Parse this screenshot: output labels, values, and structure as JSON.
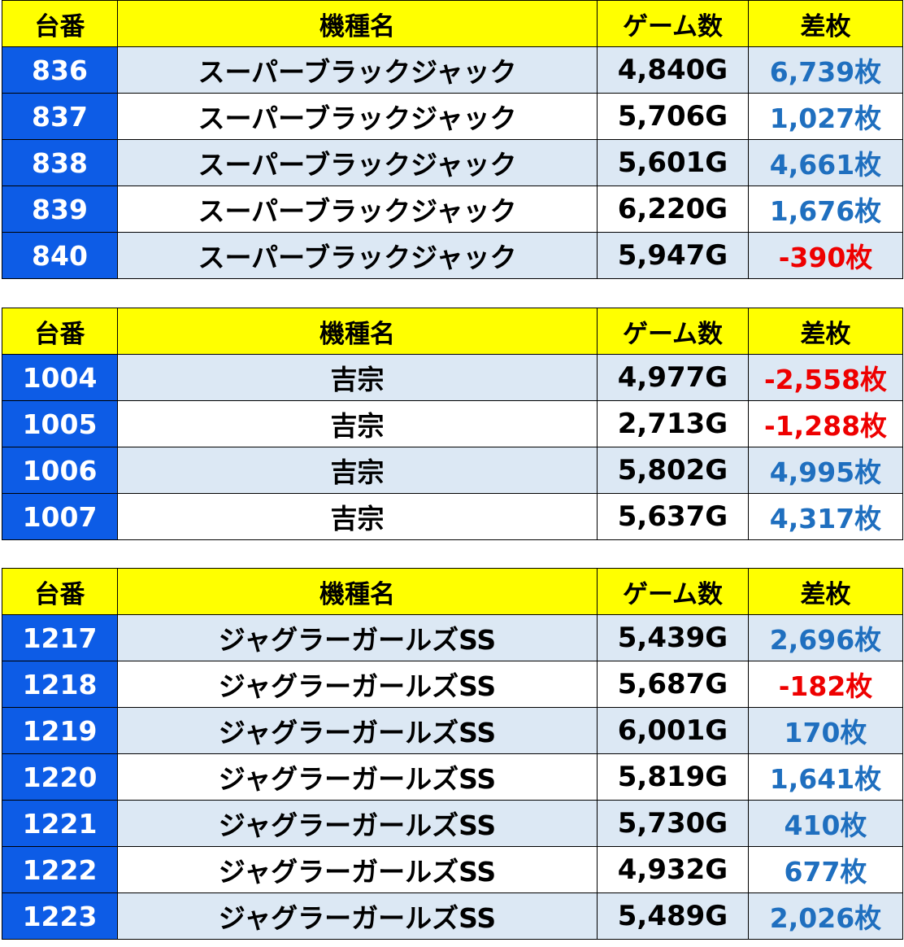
{
  "headers": {
    "no": "台番",
    "name": "機種名",
    "games": "ゲーム数",
    "diff": "差枚"
  },
  "colors": {
    "header_bg": "#ffff00",
    "no_bg": "#0d5ce6",
    "row_shade": "#dce8f4",
    "positive": "#1f6fbf",
    "negative": "#ee0000"
  },
  "tables": [
    {
      "rows": [
        {
          "no": "836",
          "name": "スーパーブラックジャック",
          "games": "4,840G",
          "diff": "6,739枚",
          "sign": "pos"
        },
        {
          "no": "837",
          "name": "スーパーブラックジャック",
          "games": "5,706G",
          "diff": "1,027枚",
          "sign": "pos"
        },
        {
          "no": "838",
          "name": "スーパーブラックジャック",
          "games": "5,601G",
          "diff": "4,661枚",
          "sign": "pos"
        },
        {
          "no": "839",
          "name": "スーパーブラックジャック",
          "games": "6,220G",
          "diff": "1,676枚",
          "sign": "pos"
        },
        {
          "no": "840",
          "name": "スーパーブラックジャック",
          "games": "5,947G",
          "diff": "-390枚",
          "sign": "neg"
        }
      ]
    },
    {
      "rows": [
        {
          "no": "1004",
          "name": "吉宗",
          "games": "4,977G",
          "diff": "-2,558枚",
          "sign": "neg"
        },
        {
          "no": "1005",
          "name": "吉宗",
          "games": "2,713G",
          "diff": "-1,288枚",
          "sign": "neg"
        },
        {
          "no": "1006",
          "name": "吉宗",
          "games": "5,802G",
          "diff": "4,995枚",
          "sign": "pos"
        },
        {
          "no": "1007",
          "name": "吉宗",
          "games": "5,637G",
          "diff": "4,317枚",
          "sign": "pos"
        }
      ]
    },
    {
      "rows": [
        {
          "no": "1217",
          "name": "ジャグラーガールズSS",
          "games": "5,439G",
          "diff": "2,696枚",
          "sign": "pos"
        },
        {
          "no": "1218",
          "name": "ジャグラーガールズSS",
          "games": "5,687G",
          "diff": "-182枚",
          "sign": "neg"
        },
        {
          "no": "1219",
          "name": "ジャグラーガールズSS",
          "games": "6,001G",
          "diff": "170枚",
          "sign": "pos"
        },
        {
          "no": "1220",
          "name": "ジャグラーガールズSS",
          "games": "5,819G",
          "diff": "1,641枚",
          "sign": "pos"
        },
        {
          "no": "1221",
          "name": "ジャグラーガールズSS",
          "games": "5,730G",
          "diff": "410枚",
          "sign": "pos"
        },
        {
          "no": "1222",
          "name": "ジャグラーガールズSS",
          "games": "4,932G",
          "diff": "677枚",
          "sign": "pos"
        },
        {
          "no": "1223",
          "name": "ジャグラーガールズSS",
          "games": "5,489G",
          "diff": "2,026枚",
          "sign": "pos"
        }
      ]
    }
  ]
}
